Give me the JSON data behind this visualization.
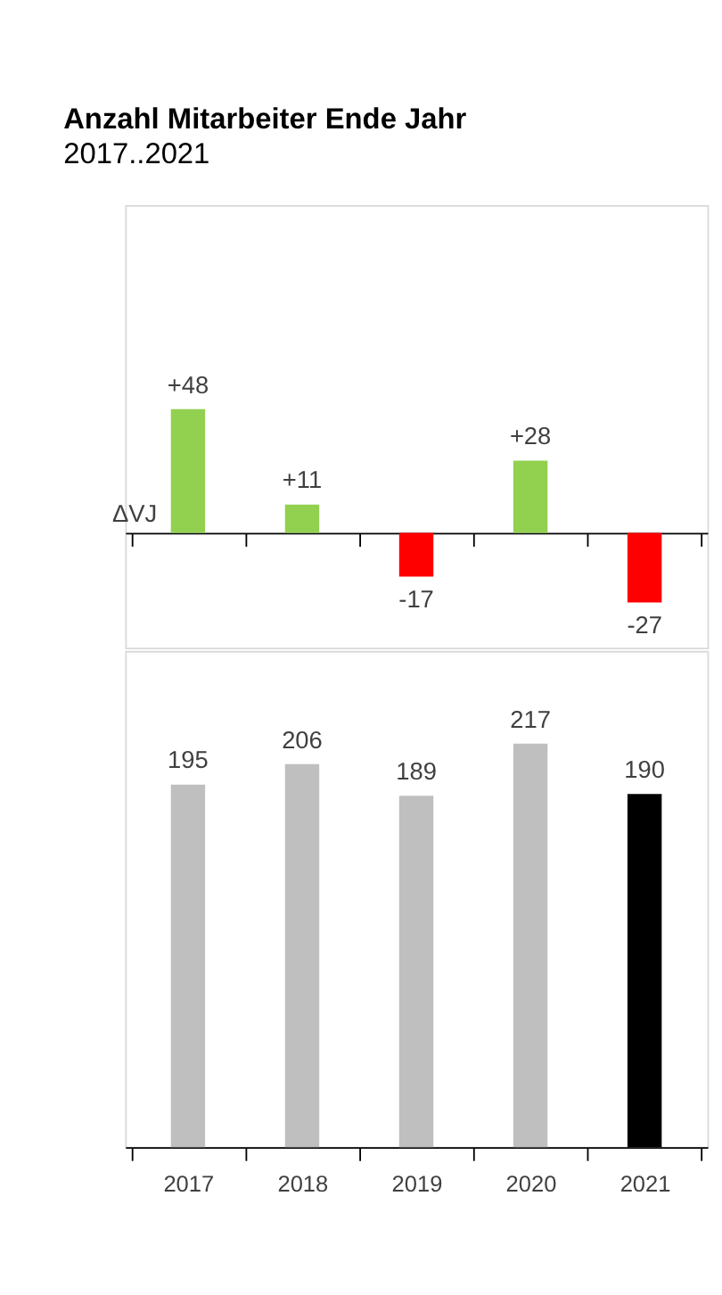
{
  "chart_data": [
    {
      "type": "bar",
      "title": "Anzahl Mitarbeiter Ende Jahr",
      "subtitle": "2017..2021",
      "ylabel": "ΔVJ",
      "categories": [
        "2017",
        "2018",
        "2019",
        "2020",
        "2021"
      ],
      "values": [
        48,
        11,
        -17,
        28,
        -27
      ],
      "colors": [
        "#92d050",
        "#92d050",
        "#ff0000",
        "#92d050",
        "#ff0000"
      ],
      "value_labels": [
        "+48",
        "+11",
        "-17",
        "+28",
        "-27"
      ],
      "tick_labels": false
    },
    {
      "type": "bar",
      "categories": [
        "2017",
        "2018",
        "2019",
        "2020",
        "2021"
      ],
      "values": [
        195,
        206,
        189,
        217,
        190
      ],
      "colors": [
        "#bfbfbf",
        "#bfbfbf",
        "#bfbfbf",
        "#bfbfbf",
        "#000000"
      ],
      "data_labels": true
    }
  ]
}
